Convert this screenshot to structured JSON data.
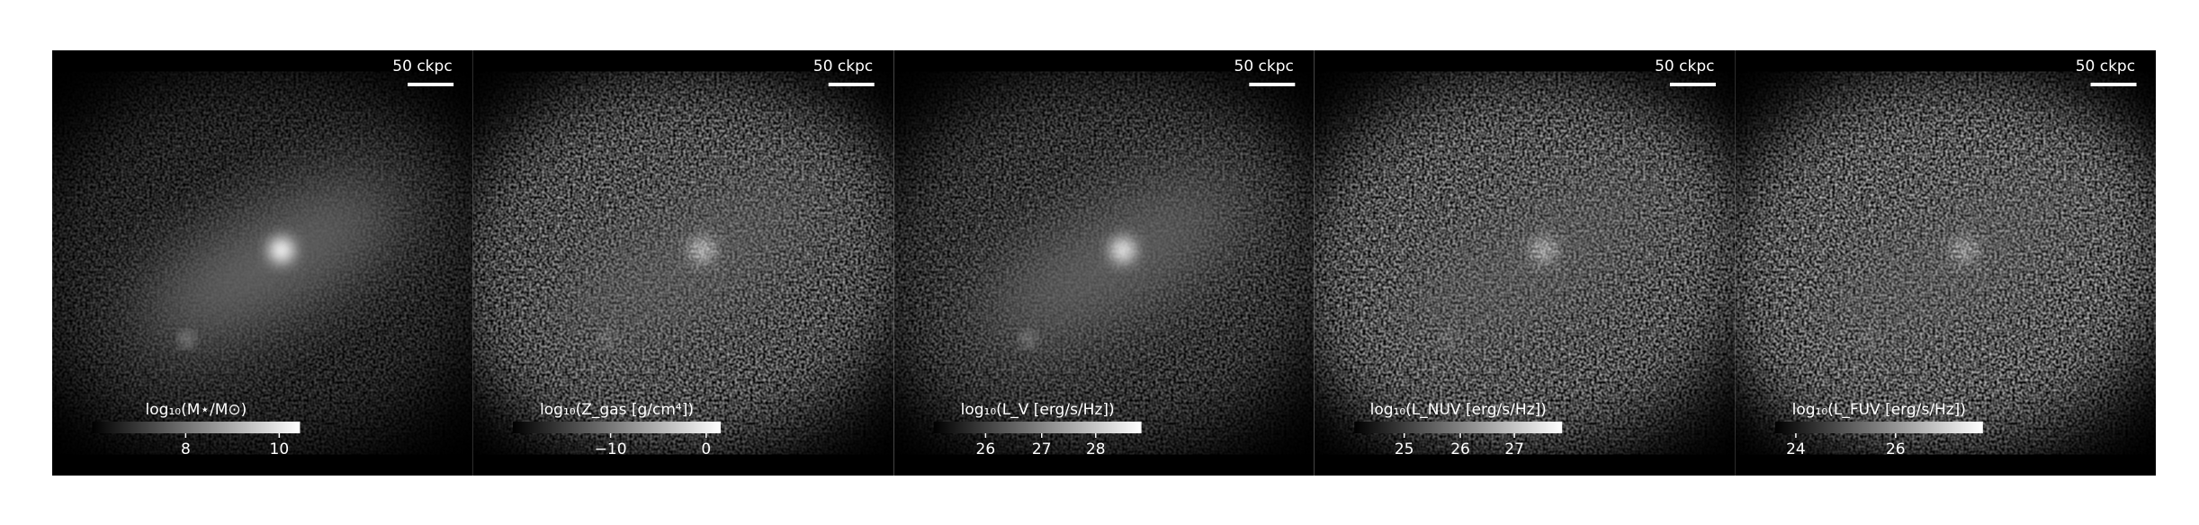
{
  "panels": [
    {
      "scale_bar": "50 ckpc",
      "colorbar": {
        "label": "log₁₀(M⋆/M⊙)",
        "ticks": [
          "8",
          "10"
        ]
      }
    },
    {
      "scale_bar": "50 ckpc",
      "colorbar": {
        "label": "log₁₀(Z_gas [g/cm⁴])",
        "ticks": [
          "−10",
          "0"
        ]
      }
    },
    {
      "scale_bar": "50 ckpc",
      "colorbar": {
        "label": "log₁₀(L_V [erg/s/Hz])",
        "ticks": [
          "26",
          "27",
          "28"
        ]
      }
    },
    {
      "scale_bar": "50 ckpc",
      "colorbar": {
        "label": "log₁₀(L_NUV [erg/s/Hz])",
        "ticks": [
          "25",
          "26",
          "27"
        ]
      }
    },
    {
      "scale_bar": "50 ckpc",
      "colorbar": {
        "label": "log₁₀(L_FUV [erg/s/Hz])",
        "ticks": [
          "24",
          "26"
        ]
      }
    }
  ]
}
